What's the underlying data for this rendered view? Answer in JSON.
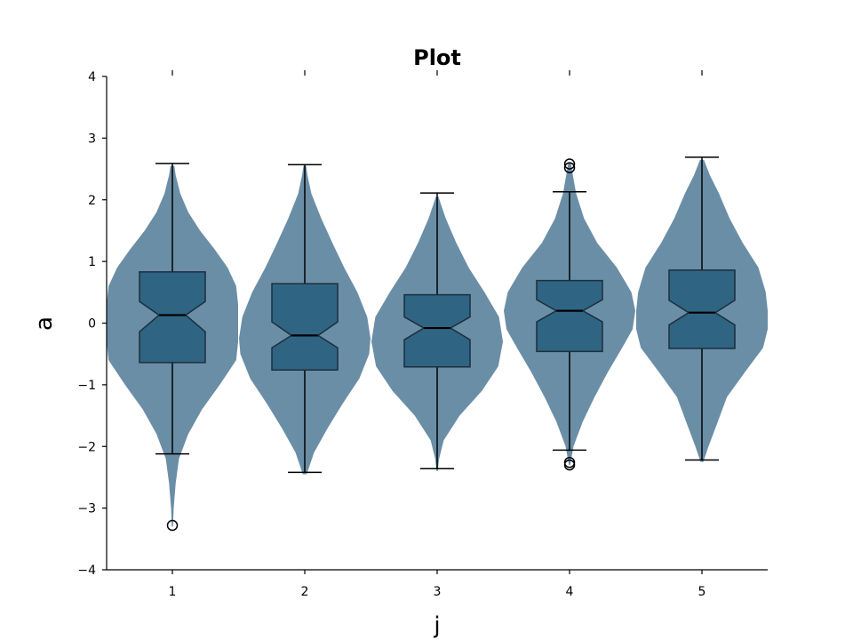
{
  "chart_data": {
    "type": "violin",
    "title": "Plot",
    "xlabel": "j",
    "ylabel": "a",
    "categories": [
      "1",
      "2",
      "3",
      "4",
      "5"
    ],
    "ylim": [
      -4,
      4
    ],
    "yticks": [
      "4",
      "3",
      "2",
      "1",
      "0",
      "−1",
      "−2",
      "−3",
      "−4"
    ],
    "grid": false,
    "legend": "none",
    "colors": {
      "violin": "#4a7594",
      "box": "#2a5f80",
      "line": "#000000"
    },
    "violins": [
      {
        "category": "1",
        "min": -3.3,
        "max": 2.55,
        "density": [
          [
            -3.3,
            0.01
          ],
          [
            -3.0,
            0.02
          ],
          [
            -2.6,
            0.05
          ],
          [
            -2.2,
            0.1
          ],
          [
            -1.8,
            0.24
          ],
          [
            -1.4,
            0.45
          ],
          [
            -1.0,
            0.72
          ],
          [
            -0.6,
            0.97
          ],
          [
            -0.3,
            1.0
          ],
          [
            0.0,
            1.0
          ],
          [
            0.3,
            1.0
          ],
          [
            0.6,
            0.97
          ],
          [
            0.9,
            0.84
          ],
          [
            1.2,
            0.64
          ],
          [
            1.5,
            0.42
          ],
          [
            1.8,
            0.24
          ],
          [
            2.1,
            0.12
          ],
          [
            2.4,
            0.05
          ],
          [
            2.55,
            0.03
          ]
        ]
      },
      {
        "category": "2",
        "min": -2.45,
        "max": 2.55,
        "density": [
          [
            -2.45,
            0.03
          ],
          [
            -2.1,
            0.14
          ],
          [
            -1.7,
            0.35
          ],
          [
            -1.3,
            0.58
          ],
          [
            -0.9,
            0.83
          ],
          [
            -0.5,
            0.98
          ],
          [
            -0.25,
            1.0
          ],
          [
            0.1,
            0.95
          ],
          [
            0.5,
            0.8
          ],
          [
            0.9,
            0.6
          ],
          [
            1.3,
            0.42
          ],
          [
            1.7,
            0.25
          ],
          [
            2.1,
            0.1
          ],
          [
            2.4,
            0.04
          ],
          [
            2.55,
            0.02
          ]
        ]
      },
      {
        "category": "3",
        "min": -2.4,
        "max": 2.05,
        "density": [
          [
            -2.4,
            0.01
          ],
          [
            -2.2,
            0.03
          ],
          [
            -1.9,
            0.1
          ],
          [
            -1.5,
            0.34
          ],
          [
            -1.1,
            0.68
          ],
          [
            -0.7,
            0.93
          ],
          [
            -0.3,
            1.0
          ],
          [
            0.1,
            0.94
          ],
          [
            0.5,
            0.72
          ],
          [
            0.9,
            0.48
          ],
          [
            1.3,
            0.29
          ],
          [
            1.7,
            0.13
          ],
          [
            1.95,
            0.05
          ],
          [
            2.05,
            0.02
          ]
        ]
      },
      {
        "category": "4",
        "min": -2.3,
        "max": 2.6,
        "density": [
          [
            -2.3,
            0.01
          ],
          [
            -2.0,
            0.06
          ],
          [
            -1.6,
            0.2
          ],
          [
            -1.2,
            0.38
          ],
          [
            -0.8,
            0.58
          ],
          [
            -0.4,
            0.8
          ],
          [
            -0.1,
            0.96
          ],
          [
            0.2,
            1.0
          ],
          [
            0.5,
            0.94
          ],
          [
            0.9,
            0.72
          ],
          [
            1.3,
            0.42
          ],
          [
            1.7,
            0.22
          ],
          [
            2.1,
            0.1
          ],
          [
            2.4,
            0.05
          ],
          [
            2.6,
            0.02
          ]
        ]
      },
      {
        "category": "5",
        "min": -2.25,
        "max": 2.65,
        "density": [
          [
            -2.25,
            0.02
          ],
          [
            -2.0,
            0.1
          ],
          [
            -1.6,
            0.24
          ],
          [
            -1.2,
            0.38
          ],
          [
            -0.8,
            0.65
          ],
          [
            -0.4,
            0.93
          ],
          [
            -0.1,
            1.0
          ],
          [
            0.2,
            1.0
          ],
          [
            0.5,
            0.97
          ],
          [
            0.9,
            0.86
          ],
          [
            1.3,
            0.62
          ],
          [
            1.7,
            0.42
          ],
          [
            2.1,
            0.26
          ],
          [
            2.4,
            0.12
          ],
          [
            2.65,
            0.03
          ]
        ]
      }
    ],
    "boxes": [
      {
        "category": "1",
        "q1": -0.64,
        "median": 0.13,
        "q3": 0.83,
        "whisker_low": -2.12,
        "whisker_high": 2.59,
        "notch_low": -0.14,
        "notch_high": 0.35,
        "outliers": [
          -3.28
        ]
      },
      {
        "category": "2",
        "q1": -0.76,
        "median": -0.2,
        "q3": 0.64,
        "whisker_low": -2.42,
        "whisker_high": 2.57,
        "notch_low": -0.4,
        "notch_high": 0.02,
        "outliers": []
      },
      {
        "category": "3",
        "q1": -0.71,
        "median": -0.08,
        "q3": 0.46,
        "whisker_low": -2.36,
        "whisker_high": 2.11,
        "notch_low": -0.27,
        "notch_high": 0.1,
        "outliers": []
      },
      {
        "category": "4",
        "q1": -0.46,
        "median": 0.2,
        "q3": 0.69,
        "whisker_low": -2.06,
        "whisker_high": 2.13,
        "notch_low": 0.02,
        "notch_high": 0.38,
        "outliers": [
          2.58,
          2.52,
          -2.26,
          -2.3
        ]
      },
      {
        "category": "5",
        "q1": -0.41,
        "median": 0.17,
        "q3": 0.86,
        "whisker_low": -2.22,
        "whisker_high": 2.69,
        "notch_low": -0.03,
        "notch_high": 0.37,
        "outliers": []
      }
    ]
  }
}
